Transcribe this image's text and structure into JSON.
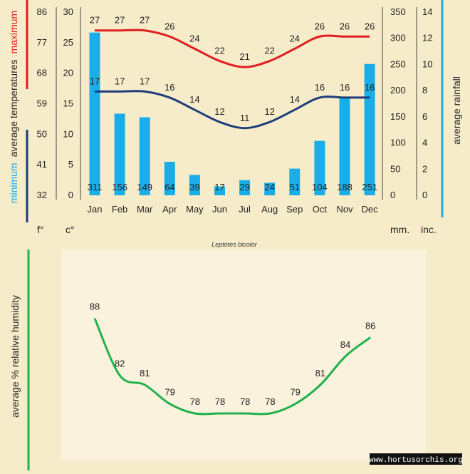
{
  "chart_data": [
    {
      "type": "bar+line",
      "title": "",
      "caption": "Leptotes bicolor",
      "categories": [
        "Jan",
        "Feb",
        "Mar",
        "Apr",
        "May",
        "Jun",
        "Jul",
        "Aug",
        "Sep",
        "Oct",
        "Nov",
        "Dec"
      ],
      "series": [
        {
          "name": "maximum",
          "kind": "line",
          "axis": "celsius",
          "color": "#e01e1e",
          "values": [
            27,
            27,
            27,
            26,
            24,
            22,
            21,
            22,
            24,
            26,
            26,
            26
          ]
        },
        {
          "name": "minimum",
          "kind": "line",
          "axis": "celsius",
          "color": "#1f3d7a",
          "values": [
            17,
            17,
            17,
            16,
            14,
            12,
            11,
            12,
            14,
            16,
            16,
            16
          ]
        },
        {
          "name": "average rainfall",
          "kind": "bar",
          "axis": "mm",
          "color": "#1aaee8",
          "values": [
            311,
            156,
            149,
            64,
            39,
            17,
            29,
            24,
            51,
            104,
            188,
            251
          ]
        }
      ],
      "axes": {
        "fahrenheit": {
          "label": "f°",
          "ticks": [
            "86",
            "77",
            "68",
            "59",
            "50",
            "41",
            "32"
          ],
          "range": [
            32,
            86
          ]
        },
        "celsius": {
          "label": "c°",
          "ticks": [
            "30",
            "25",
            "20",
            "15",
            "10",
            "5",
            "0"
          ],
          "range": [
            0,
            30
          ]
        },
        "mm": {
          "label": "mm.",
          "ticks": [
            "350",
            "300",
            "250",
            "200",
            "150",
            "100",
            "50",
            "0"
          ],
          "range": [
            0,
            350
          ]
        },
        "inches": {
          "label": "inc.",
          "ticks": [
            "14",
            "12",
            "10",
            "8",
            "6",
            "4",
            "2",
            "0"
          ],
          "range": [
            0,
            14
          ]
        }
      },
      "left_title": {
        "minimum": "minimum",
        "average_temperatures": "average  temperatures",
        "maximum": "maximum"
      },
      "right_title": "average  rainfall"
    },
    {
      "type": "line",
      "ylabel": "average %  relative humidity",
      "categories": [
        "Jan",
        "Feb",
        "Mar",
        "Apr",
        "May",
        "Jun",
        "Jul",
        "Aug",
        "Sep",
        "Oct",
        "Nov",
        "Dec"
      ],
      "series": [
        {
          "name": "average relative humidity",
          "color": "#22b14c",
          "values": [
            88,
            82,
            81,
            79,
            78,
            78,
            78,
            78,
            79,
            81,
            84,
            86
          ]
        }
      ],
      "ylim": [
        75,
        90
      ]
    }
  ],
  "footer": {
    "watermark": "www.hortusorchis.org"
  },
  "colors": {
    "background": "#f7ecc9",
    "panel": "#f9f0d6",
    "max_red": "#e01e1e",
    "min_blue": "#1f3d7a",
    "rain_blue": "#1aaee8",
    "humidity_green": "#22b14c"
  }
}
